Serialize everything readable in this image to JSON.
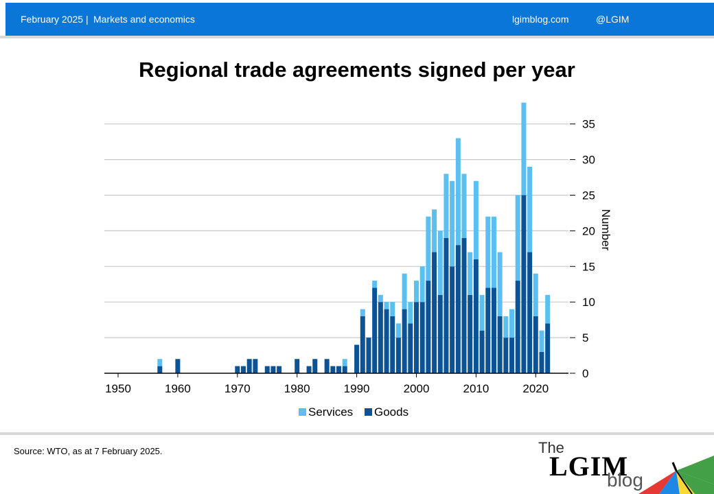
{
  "header": {
    "date": "February 2025 |",
    "section": "Markets and economics",
    "site": "lgimblog.com",
    "handle": "@LGIM"
  },
  "footer": {
    "source": "Source: WTO, as at 7 February 2025."
  },
  "logo": {
    "the": "The",
    "name": "LGIM",
    "blog": "blog"
  },
  "colors": {
    "header": "#0a76d8",
    "goods": "#0b5394",
    "services": "#5bc0f0"
  },
  "chart_data": {
    "type": "bar",
    "stacked": true,
    "title": "Regional trade agreements signed per year",
    "ylabel": "Number",
    "xlabel": "",
    "ylim": [
      0,
      38
    ],
    "yticks": [
      0,
      5,
      10,
      15,
      20,
      25,
      30,
      35
    ],
    "xticks": [
      1950,
      1960,
      1970,
      1980,
      1990,
      2000,
      2010,
      2020
    ],
    "xlim": [
      1950,
      2024
    ],
    "y_axis_position": "right",
    "grid": true,
    "legend_position": "bottom",
    "x": [
      1957,
      1958,
      1960,
      1970,
      1971,
      1972,
      1973,
      1975,
      1976,
      1977,
      1980,
      1982,
      1983,
      1985,
      1986,
      1987,
      1988,
      1990,
      1991,
      1992,
      1993,
      1994,
      1995,
      1996,
      1997,
      1998,
      1999,
      2000,
      2001,
      2002,
      2003,
      2004,
      2005,
      2006,
      2007,
      2008,
      2009,
      2010,
      2011,
      2012,
      2013,
      2014,
      2015,
      2016,
      2017,
      2018,
      2019,
      2020,
      2021,
      2022,
      2023
    ],
    "series": [
      {
        "name": "Goods",
        "values": [
          1,
          0,
          2,
          1,
          1,
          2,
          2,
          1,
          1,
          1,
          2,
          1,
          2,
          2,
          1,
          1,
          1,
          4,
          8,
          5,
          12,
          10,
          9,
          8,
          5,
          9,
          7,
          10,
          10,
          13,
          17,
          11,
          19,
          15,
          18,
          19,
          11,
          16,
          6,
          12,
          12,
          8,
          5,
          5,
          13,
          25,
          17,
          8,
          3,
          7,
          0
        ]
      },
      {
        "name": "Services",
        "values": [
          1,
          0,
          0,
          0,
          0,
          0,
          0,
          0,
          0,
          0,
          0,
          0,
          0,
          0,
          0,
          0,
          1,
          0,
          1,
          0,
          1,
          1,
          1,
          2,
          2,
          5,
          3,
          3,
          5,
          9,
          6,
          9,
          9,
          12,
          15,
          9,
          6,
          11,
          5,
          10,
          10,
          9,
          3,
          4,
          12,
          13,
          12,
          6,
          3,
          4,
          0
        ]
      }
    ]
  }
}
